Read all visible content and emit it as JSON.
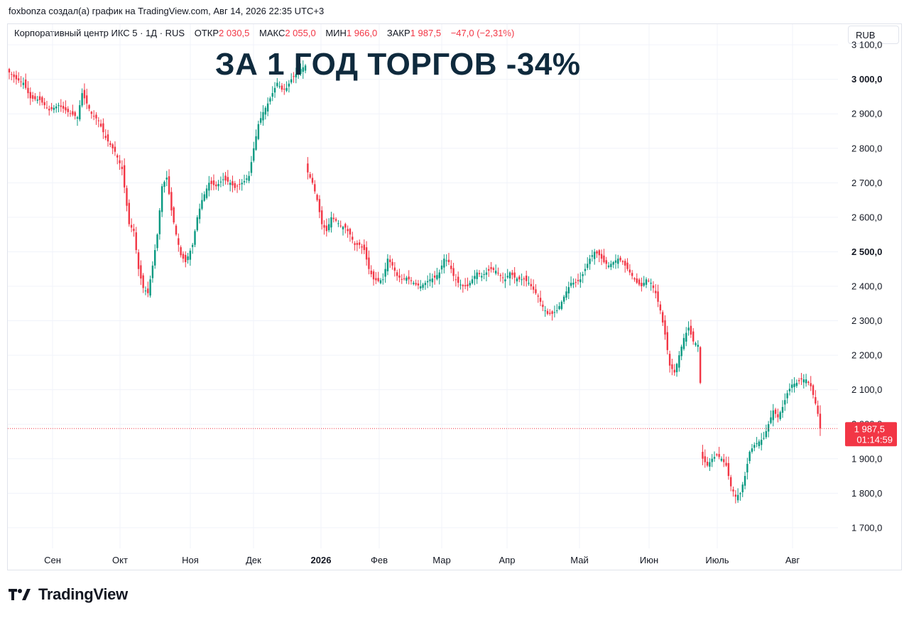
{
  "caption": "foxbonza создал(а) график на TradingView.com, Авг 14, 2026 22:35 UTC+3",
  "legend": {
    "instrument": "Корпоративный центр ИКС 5 · 1Д · RUS",
    "open_label": "ОТКР",
    "open_value": "2 030,5",
    "high_label": "МАКС",
    "high_value": "2 055,0",
    "low_label": "МИН",
    "low_value": "1 966,0",
    "close_label": "ЗАКР",
    "close_value": "1 987,5",
    "change": "−47,0 (−2,31%)"
  },
  "currency": "RUB",
  "headline": "ЗА 1 ГОД ТОРГОВ -34%",
  "brand": {
    "name": "TradingView",
    "logo": "tradingview-logo-icon"
  },
  "colors": {
    "up": "#089981",
    "down": "#f23645",
    "grid": "#f0f3fa",
    "headline": "#0f2a3d"
  },
  "chart_data": {
    "type": "candlestick",
    "ylim": [
      1640,
      3160
    ],
    "y_ticks": [
      {
        "value": 3100,
        "label": "3 100,0",
        "bold": false
      },
      {
        "value": 3000,
        "label": "3 000,0",
        "bold": true
      },
      {
        "value": 2900,
        "label": "2 900,0",
        "bold": false
      },
      {
        "value": 2800,
        "label": "2 800,0",
        "bold": false
      },
      {
        "value": 2700,
        "label": "2 700,0",
        "bold": false
      },
      {
        "value": 2600,
        "label": "2 600,0",
        "bold": false
      },
      {
        "value": 2500,
        "label": "2 500,0",
        "bold": true
      },
      {
        "value": 2400,
        "label": "2 400,0",
        "bold": false
      },
      {
        "value": 2300,
        "label": "2 300,0",
        "bold": false
      },
      {
        "value": 2200,
        "label": "2 200,0",
        "bold": false
      },
      {
        "value": 2100,
        "label": "2 100,0",
        "bold": false
      },
      {
        "value": 2000,
        "label": "2 000,0",
        "bold": false
      },
      {
        "value": 1900,
        "label": "1 900,0",
        "bold": false
      },
      {
        "value": 1800,
        "label": "1 800,0",
        "bold": false
      },
      {
        "value": 1700,
        "label": "1 700,0",
        "bold": false
      }
    ],
    "x_labels": [
      {
        "label": "Сен",
        "bold": false
      },
      {
        "label": "Окт",
        "bold": false
      },
      {
        "label": "Ноя",
        "bold": false
      },
      {
        "label": "Дек",
        "bold": false
      },
      {
        "label": "2026",
        "bold": true
      },
      {
        "label": "Фев",
        "bold": false
      },
      {
        "label": "Мар",
        "bold": false
      },
      {
        "label": "Апр",
        "bold": false
      },
      {
        "label": "Май",
        "bold": false
      },
      {
        "label": "Июн",
        "bold": false
      },
      {
        "label": "Июль",
        "bold": false
      },
      {
        "label": "Авг",
        "bold": false
      }
    ],
    "last_price": {
      "value": 1987.5,
      "label": "1 987,5",
      "countdown": "01:14:59"
    },
    "anchors": [
      [
        0,
        3020
      ],
      [
        3,
        3000
      ],
      [
        6,
        2990
      ],
      [
        9,
        2945
      ],
      [
        13,
        2940
      ],
      [
        17,
        2910
      ],
      [
        21,
        2925
      ],
      [
        25,
        2905
      ],
      [
        29,
        2890
      ],
      [
        31,
        2960
      ],
      [
        35,
        2900
      ],
      [
        38,
        2880
      ],
      [
        41,
        2830
      ],
      [
        45,
        2790
      ],
      [
        48,
        2740
      ],
      [
        51,
        2580
      ],
      [
        53,
        2560
      ],
      [
        55,
        2450
      ],
      [
        57,
        2395
      ],
      [
        59,
        2380
      ],
      [
        61,
        2460
      ],
      [
        63,
        2550
      ],
      [
        65,
        2690
      ],
      [
        67,
        2715
      ],
      [
        69,
        2620
      ],
      [
        71,
        2550
      ],
      [
        73,
        2490
      ],
      [
        75,
        2470
      ],
      [
        78,
        2520
      ],
      [
        80,
        2600
      ],
      [
        82,
        2650
      ],
      [
        85,
        2700
      ],
      [
        88,
        2690
      ],
      [
        91,
        2710
      ],
      [
        94,
        2700
      ],
      [
        96,
        2685
      ],
      [
        98,
        2695
      ],
      [
        100,
        2705
      ],
      [
        102,
        2720
      ],
      [
        104,
        2800
      ],
      [
        106,
        2870
      ],
      [
        108,
        2905
      ],
      [
        110,
        2930
      ],
      [
        112,
        2960
      ],
      [
        114,
        2990
      ],
      [
        116,
        2970
      ],
      [
        118,
        2975
      ],
      [
        120,
        3000
      ],
      [
        122,
        3015
      ],
      [
        124,
        3030
      ],
      [
        126,
        3040
      ],
      [
        127,
        2730
      ],
      [
        129,
        2700
      ],
      [
        131,
        2650
      ],
      [
        133,
        2580
      ],
      [
        135,
        2560
      ],
      [
        137,
        2600
      ],
      [
        139,
        2590
      ],
      [
        141,
        2575
      ],
      [
        143,
        2570
      ],
      [
        145,
        2550
      ],
      [
        147,
        2520
      ],
      [
        149,
        2520
      ],
      [
        151,
        2505
      ],
      [
        153,
        2450
      ],
      [
        155,
        2420
      ],
      [
        157,
        2415
      ],
      [
        159,
        2420
      ],
      [
        161,
        2480
      ],
      [
        163,
        2460
      ],
      [
        165,
        2430
      ],
      [
        167,
        2420
      ],
      [
        169,
        2425
      ],
      [
        171,
        2415
      ],
      [
        173,
        2405
      ],
      [
        175,
        2400
      ],
      [
        177,
        2410
      ],
      [
        179,
        2420
      ],
      [
        181,
        2425
      ],
      [
        183,
        2440
      ],
      [
        185,
        2480
      ],
      [
        187,
        2470
      ],
      [
        189,
        2430
      ],
      [
        191,
        2410
      ],
      [
        193,
        2400
      ],
      [
        195,
        2400
      ],
      [
        197,
        2420
      ],
      [
        199,
        2440
      ],
      [
        201,
        2430
      ],
      [
        203,
        2440
      ],
      [
        205,
        2450
      ],
      [
        207,
        2445
      ],
      [
        209,
        2430
      ],
      [
        211,
        2420
      ],
      [
        213,
        2440
      ],
      [
        215,
        2425
      ],
      [
        217,
        2420
      ],
      [
        219,
        2420
      ],
      [
        221,
        2410
      ],
      [
        223,
        2390
      ],
      [
        225,
        2370
      ],
      [
        227,
        2340
      ],
      [
        229,
        2320
      ],
      [
        231,
        2320
      ],
      [
        233,
        2330
      ],
      [
        235,
        2355
      ],
      [
        237,
        2385
      ],
      [
        239,
        2410
      ],
      [
        241,
        2410
      ],
      [
        243,
        2420
      ],
      [
        245,
        2450
      ],
      [
        247,
        2480
      ],
      [
        249,
        2500
      ],
      [
        251,
        2490
      ],
      [
        253,
        2470
      ],
      [
        255,
        2460
      ],
      [
        257,
        2470
      ],
      [
        259,
        2480
      ],
      [
        261,
        2470
      ],
      [
        263,
        2450
      ],
      [
        265,
        2430
      ],
      [
        267,
        2410
      ],
      [
        269,
        2400
      ],
      [
        271,
        2420
      ],
      [
        273,
        2410
      ],
      [
        275,
        2380
      ],
      [
        277,
        2330
      ],
      [
        279,
        2260
      ],
      [
        281,
        2170
      ],
      [
        283,
        2150
      ],
      [
        285,
        2200
      ],
      [
        287,
        2250
      ],
      [
        289,
        2280
      ],
      [
        291,
        2240
      ],
      [
        293,
        2230
      ],
      [
        294,
        2120
      ],
      [
        295,
        1900
      ],
      [
        297,
        1880
      ],
      [
        299,
        1900
      ],
      [
        301,
        1910
      ],
      [
        303,
        1900
      ],
      [
        305,
        1880
      ],
      [
        307,
        1820
      ],
      [
        309,
        1790
      ],
      [
        311,
        1800
      ],
      [
        313,
        1850
      ],
      [
        315,
        1920
      ],
      [
        317,
        1940
      ],
      [
        319,
        1950
      ],
      [
        321,
        1960
      ],
      [
        323,
        2000
      ],
      [
        325,
        2040
      ],
      [
        327,
        2020
      ],
      [
        329,
        2050
      ],
      [
        331,
        2090
      ],
      [
        333,
        2115
      ],
      [
        335,
        2120
      ],
      [
        337,
        2130
      ],
      [
        339,
        2130
      ],
      [
        341,
        2110
      ],
      [
        343,
        2060
      ],
      [
        344,
        2030
      ],
      [
        345,
        1987.5
      ]
    ]
  }
}
